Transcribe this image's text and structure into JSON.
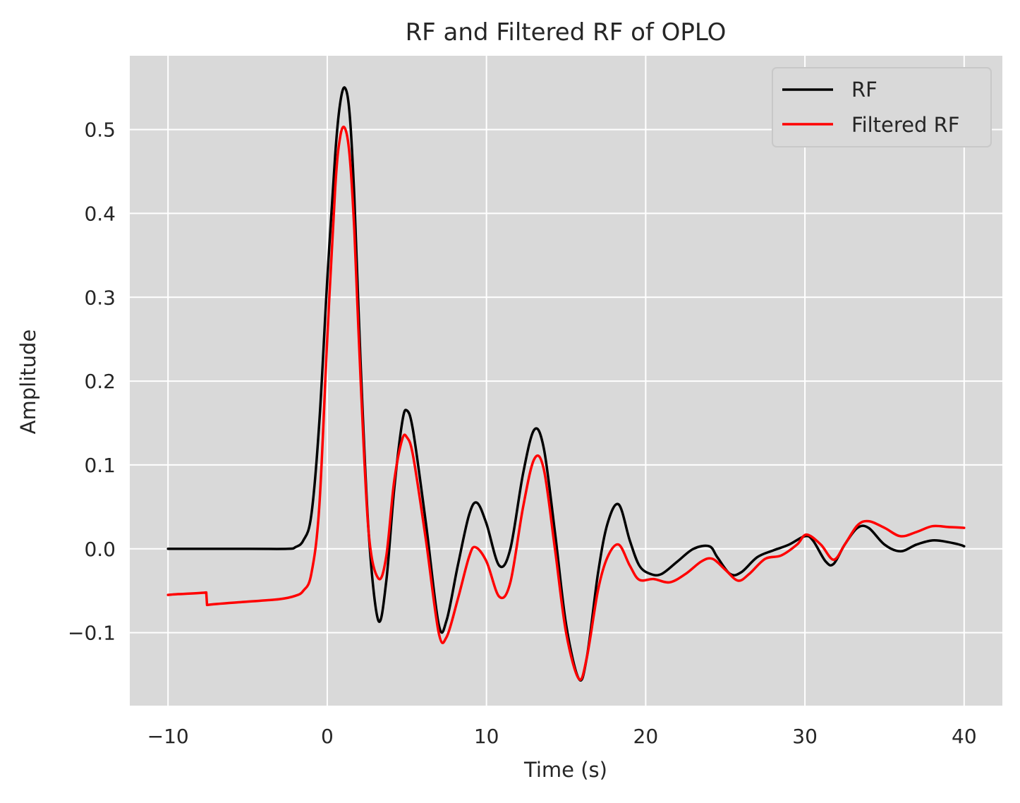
{
  "chart_data": {
    "type": "line",
    "title": "RF and Filtered RF of OPLO",
    "xlabel": "Time (s)",
    "ylabel": "Amplitude",
    "xlim": [
      -12.4,
      42.4
    ],
    "ylim": [
      -0.187,
      0.588
    ],
    "x_ticks": [
      -10,
      0,
      10,
      20,
      30,
      40
    ],
    "x_tick_labels": [
      "−10",
      "0",
      "10",
      "20",
      "30",
      "40"
    ],
    "y_ticks": [
      -0.1,
      0.0,
      0.1,
      0.2,
      0.3,
      0.4,
      0.5
    ],
    "y_tick_labels": [
      "−0.1",
      "0.0",
      "0.1",
      "0.2",
      "0.3",
      "0.4",
      "0.5"
    ],
    "grid": true,
    "background": "#d9d9d9",
    "legend": {
      "placement": "top-right"
    },
    "series": [
      {
        "name": "RF",
        "color": "#000000",
        "x": [
          -10,
          -5,
          -2.5,
          -2,
          -1.5,
          -1,
          -0.5,
          0,
          0.5,
          0.8,
          1.1,
          1.4,
          1.7,
          2.1,
          2.6,
          3.2,
          3.7,
          4.2,
          4.7,
          5.0,
          5.4,
          6.2,
          7.0,
          7.5,
          8.2,
          8.9,
          9.4,
          10.0,
          10.8,
          11.5,
          12.3,
          13.0,
          13.6,
          14.3,
          15.0,
          15.8,
          16.3,
          17.0,
          17.6,
          18.3,
          19.0,
          19.6,
          20.3,
          21.0,
          22.0,
          23.0,
          24.0,
          24.5,
          25.3,
          26.0,
          27.0,
          28.0,
          29.0,
          30.0,
          30.5,
          31.3,
          31.8,
          32.5,
          33.3,
          34.0,
          35.0,
          36.0,
          37.0,
          38.0,
          39.0,
          40.0
        ],
        "y": [
          0.0,
          0.0,
          0.0,
          0.002,
          0.01,
          0.04,
          0.15,
          0.32,
          0.47,
          0.53,
          0.55,
          0.52,
          0.42,
          0.22,
          0.02,
          -0.085,
          -0.04,
          0.07,
          0.15,
          0.165,
          0.14,
          0.03,
          -0.09,
          -0.085,
          -0.02,
          0.04,
          0.055,
          0.03,
          -0.02,
          0.0,
          0.09,
          0.142,
          0.12,
          0.02,
          -0.09,
          -0.155,
          -0.13,
          -0.03,
          0.03,
          0.053,
          0.01,
          -0.02,
          -0.03,
          -0.03,
          -0.015,
          0.0,
          0.003,
          -0.01,
          -0.03,
          -0.028,
          -0.01,
          -0.002,
          0.005,
          0.015,
          0.01,
          -0.015,
          -0.018,
          0.005,
          0.025,
          0.025,
          0.005,
          -0.003,
          0.005,
          0.01,
          0.008,
          0.003
        ]
      },
      {
        "name": "Filtered RF",
        "color": "#ff0000",
        "x": [
          -10,
          -7.6,
          -7.55,
          -5,
          -3,
          -2,
          -1.5,
          -1,
          -0.5,
          0,
          0.5,
          0.8,
          1.1,
          1.4,
          1.7,
          2.1,
          2.6,
          3.2,
          3.7,
          4.2,
          4.7,
          5.0,
          5.4,
          6.2,
          7.0,
          7.5,
          8.2,
          8.9,
          9.3,
          10.0,
          10.8,
          11.5,
          12.3,
          13.0,
          13.6,
          14.3,
          15.0,
          15.8,
          16.3,
          17.0,
          17.6,
          18.3,
          19.0,
          19.6,
          20.5,
          21.5,
          22.5,
          23.5,
          24.2,
          25.0,
          25.8,
          26.5,
          27.5,
          28.5,
          29.5,
          30.1,
          31.0,
          31.8,
          32.5,
          33.3,
          34.0,
          35.0,
          36.0,
          37.0,
          38.0,
          39.0,
          40.0
        ],
        "y": [
          -0.055,
          -0.052,
          -0.067,
          -0.063,
          -0.06,
          -0.056,
          -0.05,
          -0.03,
          0.05,
          0.25,
          0.43,
          0.49,
          0.502,
          0.47,
          0.38,
          0.2,
          0.02,
          -0.035,
          -0.01,
          0.08,
          0.13,
          0.133,
          0.11,
          0.01,
          -0.1,
          -0.105,
          -0.06,
          -0.01,
          0.002,
          -0.015,
          -0.057,
          -0.04,
          0.05,
          0.107,
          0.095,
          0.0,
          -0.1,
          -0.155,
          -0.13,
          -0.05,
          -0.01,
          0.005,
          -0.02,
          -0.037,
          -0.036,
          -0.04,
          -0.03,
          -0.015,
          -0.012,
          -0.025,
          -0.038,
          -0.03,
          -0.012,
          -0.008,
          0.005,
          0.017,
          0.005,
          -0.013,
          0.005,
          0.028,
          0.033,
          0.025,
          0.015,
          0.02,
          0.027,
          0.026,
          0.025
        ]
      }
    ]
  }
}
